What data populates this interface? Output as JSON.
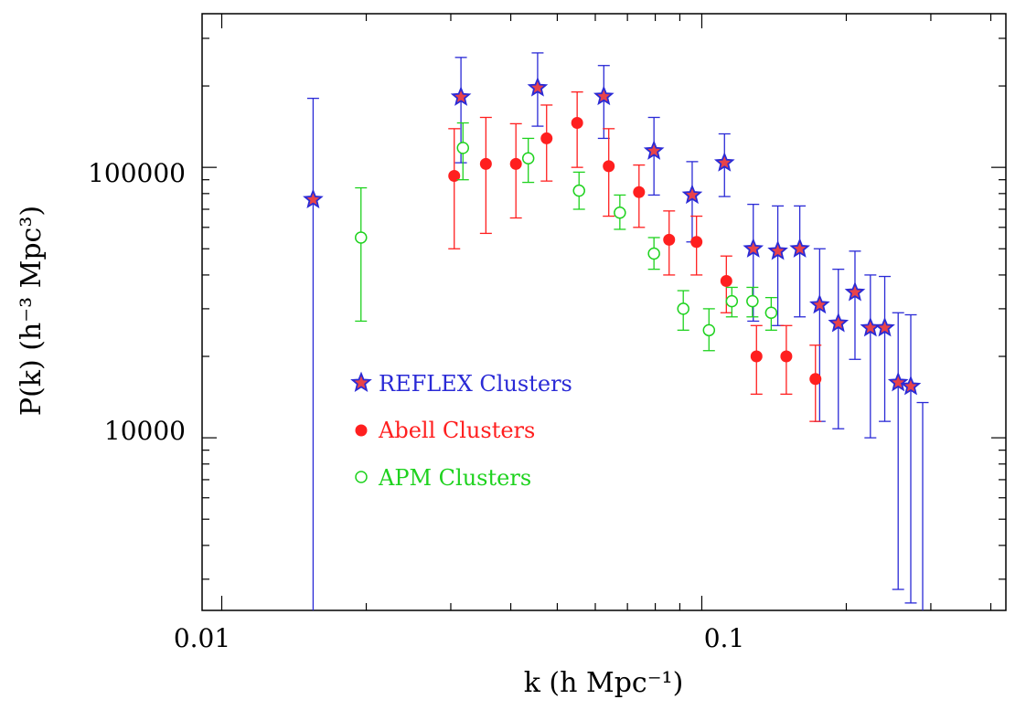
{
  "chart_data": {
    "type": "scatter",
    "xlabel": "k (h Mpc⁻¹)",
    "ylabel": "P(k) (h⁻³ Mpc³)",
    "xscale": "log",
    "yscale": "log",
    "xlim": [
      0.0091,
      0.43
    ],
    "ylim": [
      2300,
      370000
    ],
    "x_tick_labels": [
      "0.01",
      "0.1"
    ],
    "y_tick_labels": [
      "10000",
      "100000"
    ],
    "legend_position": "left-middle",
    "series": [
      {
        "name": "REFLEX Clusters",
        "marker": "star",
        "color": "#2a2ad6",
        "fill": "#e8434a",
        "points": [
          {
            "x": 0.0155,
            "y": 76000,
            "lo": 1500,
            "hi": 180000
          },
          {
            "x": 0.0315,
            "y": 182000,
            "lo": 104000,
            "hi": 255000
          },
          {
            "x": 0.0455,
            "y": 197000,
            "lo": 142000,
            "hi": 265000
          },
          {
            "x": 0.0625,
            "y": 183000,
            "lo": 128000,
            "hi": 238000
          },
          {
            "x": 0.0795,
            "y": 115000,
            "lo": 79000,
            "hi": 153000
          },
          {
            "x": 0.0955,
            "y": 79000,
            "lo": 53000,
            "hi": 105000
          },
          {
            "x": 0.1115,
            "y": 104000,
            "lo": 78000,
            "hi": 133000
          },
          {
            "x": 0.128,
            "y": 50000,
            "lo": 27000,
            "hi": 73000
          },
          {
            "x": 0.144,
            "y": 49000,
            "lo": 26000,
            "hi": 72000
          },
          {
            "x": 0.16,
            "y": 50000,
            "lo": 28000,
            "hi": 72000
          },
          {
            "x": 0.176,
            "y": 31000,
            "lo": 11500,
            "hi": 50000
          },
          {
            "x": 0.1925,
            "y": 26500,
            "lo": 10800,
            "hi": 42000
          },
          {
            "x": 0.2085,
            "y": 34500,
            "lo": 19500,
            "hi": 49000
          },
          {
            "x": 0.2245,
            "y": 25500,
            "lo": 10000,
            "hi": 40000
          },
          {
            "x": 0.2405,
            "y": 25500,
            "lo": 11500,
            "hi": 39500
          },
          {
            "x": 0.2565,
            "y": 16000,
            "lo": 2750,
            "hi": 29000
          },
          {
            "x": 0.2725,
            "y": 15500,
            "lo": 2450,
            "hi": 28500
          },
          {
            "x": 0.2885,
            "y": 0,
            "lo": 2300,
            "hi": 13500
          }
        ]
      },
      {
        "name": "Abell Clusters",
        "marker": "filled-circle",
        "color": "#ff1f1f",
        "points": [
          {
            "x": 0.0305,
            "y": 93000,
            "lo": 50000,
            "hi": 139000
          },
          {
            "x": 0.0355,
            "y": 103000,
            "lo": 57000,
            "hi": 153000
          },
          {
            "x": 0.041,
            "y": 103000,
            "lo": 65000,
            "hi": 145000
          },
          {
            "x": 0.0475,
            "y": 128000,
            "lo": 89000,
            "hi": 170000
          },
          {
            "x": 0.055,
            "y": 146000,
            "lo": 100000,
            "hi": 190000
          },
          {
            "x": 0.064,
            "y": 101000,
            "lo": 66000,
            "hi": 139000
          },
          {
            "x": 0.074,
            "y": 81000,
            "lo": 60000,
            "hi": 102000
          },
          {
            "x": 0.0855,
            "y": 54000,
            "lo": 40000,
            "hi": 69000
          },
          {
            "x": 0.0975,
            "y": 53000,
            "lo": 40000,
            "hi": 66000
          },
          {
            "x": 0.1125,
            "y": 38000,
            "lo": 29000,
            "hi": 47000
          },
          {
            "x": 0.13,
            "y": 20000,
            "lo": 14500,
            "hi": 26000
          },
          {
            "x": 0.15,
            "y": 20000,
            "lo": 14500,
            "hi": 26000
          },
          {
            "x": 0.1725,
            "y": 16500,
            "lo": 11500,
            "hi": 22000
          }
        ]
      },
      {
        "name": "APM Clusters",
        "marker": "open-circle",
        "color": "#1ed21e",
        "points": [
          {
            "x": 0.0195,
            "y": 55000,
            "lo": 27000,
            "hi": 84000
          },
          {
            "x": 0.0318,
            "y": 118000,
            "lo": 90000,
            "hi": 146000
          },
          {
            "x": 0.0435,
            "y": 108000,
            "lo": 88000,
            "hi": 128000
          },
          {
            "x": 0.0555,
            "y": 82000,
            "lo": 70000,
            "hi": 96000
          },
          {
            "x": 0.0675,
            "y": 68000,
            "lo": 59000,
            "hi": 79000
          },
          {
            "x": 0.0795,
            "y": 48000,
            "lo": 42000,
            "hi": 55000
          },
          {
            "x": 0.0915,
            "y": 30000,
            "lo": 25000,
            "hi": 35000
          },
          {
            "x": 0.1035,
            "y": 25000,
            "lo": 21000,
            "hi": 30000
          },
          {
            "x": 0.1155,
            "y": 32000,
            "lo": 28000,
            "hi": 36000
          },
          {
            "x": 0.1275,
            "y": 32000,
            "lo": 28000,
            "hi": 36000
          },
          {
            "x": 0.1395,
            "y": 29000,
            "lo": 25000,
            "hi": 33000
          }
        ]
      }
    ]
  }
}
